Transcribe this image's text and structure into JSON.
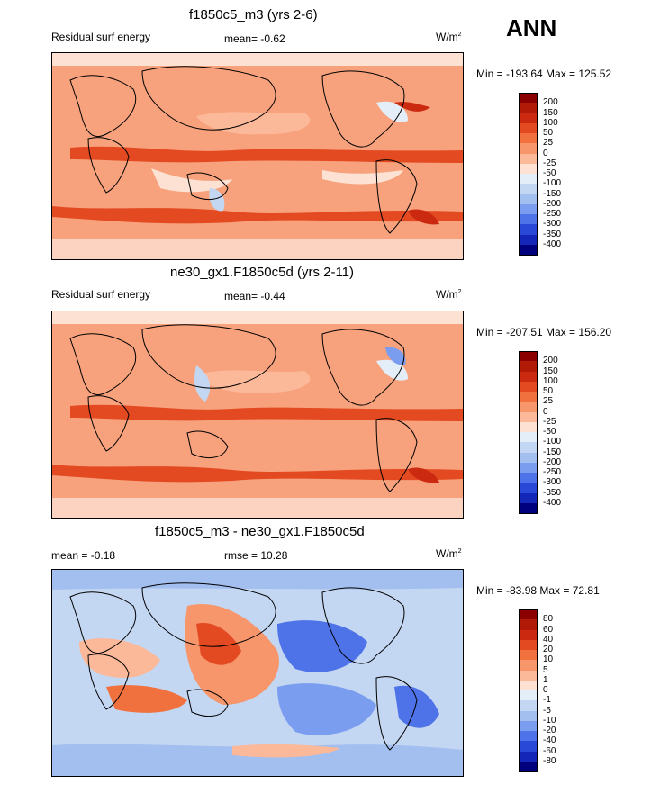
{
  "season": "ANN",
  "panels": [
    {
      "title": "f1850c5_m3 (yrs 2-6)",
      "left_label": "Residual surf energy",
      "center_label": "mean=  -0.62",
      "units_base": "W/m",
      "units_sup": "2",
      "minmax": "Min = -193.64 Max = 125.52",
      "levels": [
        "200",
        "150",
        "100",
        "50",
        "25",
        "0",
        "-25",
        "-50",
        "-100",
        "-150",
        "-200",
        "-250",
        "-300",
        "-350",
        "-400"
      ],
      "colors": [
        "#8b0000",
        "#b11a07",
        "#cc2a10",
        "#e34a22",
        "#f0703e",
        "#f7956b",
        "#fbb99a",
        "#fde1d3",
        "#e4eef9",
        "#c4d7f2",
        "#a3bff0",
        "#7a9df0",
        "#4e72e8",
        "#2a48d8",
        "#1326b8",
        "#00007f"
      ]
    },
    {
      "title": "ne30_gx1.F1850c5d (yrs 2-11)",
      "left_label": "Residual surf energy",
      "center_label": "mean=  -0.44",
      "units_base": "W/m",
      "units_sup": "2",
      "minmax": "Min = -207.51 Max = 156.20",
      "levels": [
        "200",
        "150",
        "100",
        "50",
        "25",
        "0",
        "-25",
        "-50",
        "-100",
        "-150",
        "-200",
        "-250",
        "-300",
        "-350",
        "-400"
      ],
      "colors": [
        "#8b0000",
        "#b11a07",
        "#cc2a10",
        "#e34a22",
        "#f0703e",
        "#f7956b",
        "#fbb99a",
        "#fde1d3",
        "#e4eef9",
        "#c4d7f2",
        "#a3bff0",
        "#7a9df0",
        "#4e72e8",
        "#2a48d8",
        "#1326b8",
        "#00007f"
      ]
    },
    {
      "title": "f1850c5_m3 - ne30_gx1.F1850c5d",
      "left_label": "mean =  -0.18",
      "center_label": "rmse =  10.28",
      "units_base": "W/m",
      "units_sup": "2",
      "minmax": "Min = -83.98 Max =  72.81",
      "levels": [
        "80",
        "60",
        "40",
        "20",
        "10",
        "5",
        "1",
        "0",
        "-1",
        "-5",
        "-10",
        "-20",
        "-40",
        "-60",
        "-80"
      ],
      "colors": [
        "#8b0000",
        "#b11a07",
        "#cc2a10",
        "#e34a22",
        "#f0703e",
        "#f7956b",
        "#fbb99a",
        "#fde1d3",
        "#e4eef9",
        "#c4d7f2",
        "#a3bff0",
        "#7a9df0",
        "#4e72e8",
        "#2a48d8",
        "#1326b8",
        "#00007f"
      ]
    }
  ],
  "chart_data": [
    {
      "type": "heatmap",
      "title": "f1850c5_m3 (yrs 2-6)",
      "variable": "Residual surf energy",
      "mean": -0.62,
      "min": -193.64,
      "max": 125.52,
      "units": "W/m2",
      "contour_levels": [
        200,
        150,
        100,
        50,
        25,
        0,
        -25,
        -50,
        -100,
        -150,
        -200,
        -250,
        -300,
        -350,
        -400
      ]
    },
    {
      "type": "heatmap",
      "title": "ne30_gx1.F1850c5d (yrs 2-11)",
      "variable": "Residual surf energy",
      "mean": -0.44,
      "min": -207.51,
      "max": 156.2,
      "units": "W/m2",
      "contour_levels": [
        200,
        150,
        100,
        50,
        25,
        0,
        -25,
        -50,
        -100,
        -150,
        -200,
        -250,
        -300,
        -350,
        -400
      ]
    },
    {
      "type": "heatmap",
      "title": "f1850c5_m3 - ne30_gx1.F1850c5d",
      "mean": -0.18,
      "rmse": 10.28,
      "min": -83.98,
      "max": 72.81,
      "units": "W/m2",
      "contour_levels": [
        80,
        60,
        40,
        20,
        10,
        5,
        1,
        0,
        -1,
        -5,
        -10,
        -20,
        -40,
        -60,
        -80
      ]
    }
  ]
}
